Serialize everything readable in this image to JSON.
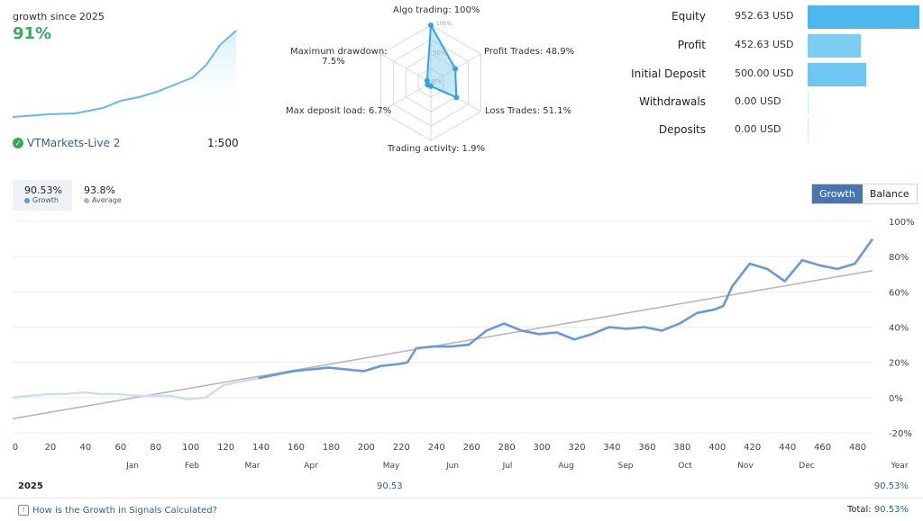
{
  "summary": {
    "growth_since_label": "growth since 2025",
    "growth_since_value": "91%",
    "account_name": "VTMarkets-Live 2",
    "leverage": "1:500"
  },
  "radar": {
    "labels": {
      "algo": "Algo trading: 100%",
      "profit": "Profit Trades: 48.9%",
      "loss": "Loss Trades: 51.1%",
      "activity": "Trading activity: 1.9%",
      "deposit_load": "Max deposit load: 6.7%",
      "drawdown_line1": "Maximum drawdown:",
      "drawdown_line2": "7.5%"
    },
    "ring_labels": [
      "100%",
      "50%",
      "0%"
    ],
    "values": {
      "algo": 100,
      "profit": 48.9,
      "loss": 51.1,
      "activity": 1.9,
      "deposit_load": 6.7,
      "drawdown": 7.5
    }
  },
  "stats": [
    {
      "label": "Equity",
      "value": "952.63 USD",
      "amount": 952.63,
      "color": "#4db8ee"
    },
    {
      "label": "Profit",
      "value": "452.63 USD",
      "amount": 452.63,
      "color": "#7dcdf3"
    },
    {
      "label": "Initial Deposit",
      "value": "500.00 USD",
      "amount": 500.0,
      "color": "#6fc7f1"
    },
    {
      "label": "Withdrawals",
      "value": "0.00 USD",
      "amount": 0,
      "color": "#cde6f5"
    },
    {
      "label": "Deposits",
      "value": "0.00 USD",
      "amount": 0,
      "color": "#cde6f5"
    }
  ],
  "tabs": {
    "growth_value": "90.53%",
    "growth_label": "Growth",
    "average_value": "93.8%",
    "average_label": "Average"
  },
  "toggle": {
    "growth": "Growth",
    "balance": "Balance"
  },
  "chart_data": {
    "type": "line",
    "x_ticks": [
      0,
      20,
      40,
      60,
      80,
      100,
      120,
      140,
      160,
      180,
      200,
      220,
      240,
      260,
      280,
      300,
      320,
      340,
      360,
      380,
      400,
      420,
      440,
      460,
      480
    ],
    "xlim": [
      0,
      490
    ],
    "ylim": [
      -20,
      100
    ],
    "y_ticks": [
      "100%",
      "80%",
      "60%",
      "40%",
      "20%",
      "0%",
      "-20%"
    ],
    "months": [
      "Jan",
      "Feb",
      "Mar",
      "Apr",
      "May",
      "Jun",
      "Jul",
      "Aug",
      "Sep",
      "Oct",
      "Nov",
      "Dec"
    ],
    "year_label": "Year",
    "grid": true,
    "series": [
      {
        "x": [
          0,
          10,
          20,
          30,
          40,
          50,
          60,
          70,
          80,
          90,
          100,
          110,
          120,
          130,
          140,
          150,
          160,
          170,
          180,
          190,
          200,
          210,
          220,
          225,
          230,
          240,
          250,
          260,
          270,
          280,
          290,
          300,
          310,
          320,
          330,
          340,
          350,
          360,
          370,
          380,
          390,
          400,
          405,
          410,
          420,
          430,
          440,
          450,
          460,
          470,
          480,
          490
        ],
        "y": [
          0,
          1,
          2,
          2,
          3,
          2,
          2,
          1,
          1,
          1,
          -1,
          0,
          7,
          9,
          11,
          13,
          15,
          16,
          17,
          16,
          15,
          18,
          19,
          20,
          28,
          29,
          29,
          30,
          38,
          42,
          38,
          36,
          37,
          33,
          36,
          40,
          39,
          40,
          38,
          42,
          48,
          50,
          52,
          63,
          76,
          73,
          66,
          78,
          75,
          73,
          76,
          90
        ]
      },
      {
        "x": [
          0,
          490
        ],
        "y": [
          -12,
          72
        ]
      }
    ]
  },
  "footer": {
    "year": "2025",
    "mid_value": "90.53",
    "end_value": "90.53%",
    "help_link": "How is the Growth in Signals Calculated?",
    "total_label": "Total:",
    "total_value": "90.53%"
  }
}
